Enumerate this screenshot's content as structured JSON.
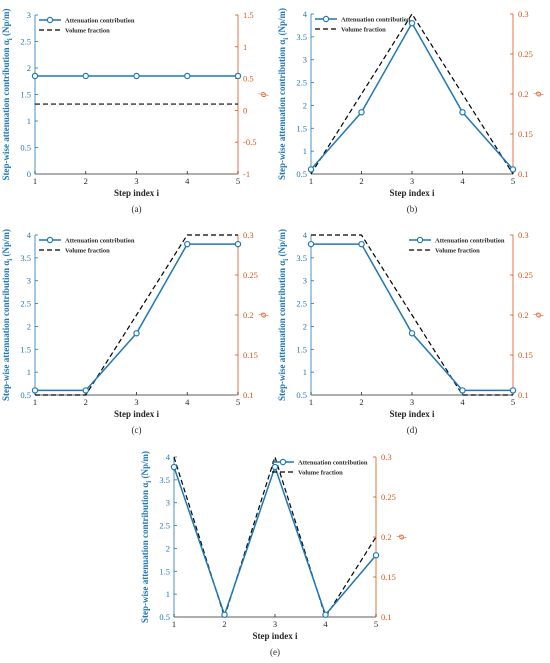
{
  "colors": {
    "attenuation": "#1f77b4",
    "volume": "#000000",
    "right_axis": "#d95319",
    "left_axis": "#1f77b4"
  },
  "chart_data": [
    {
      "type": "line",
      "panel_label": "(a)",
      "x": [
        1,
        2,
        3,
        4,
        5
      ],
      "xlabel": "Step index i",
      "ylabel": "Step-wise attenuation contribution α",
      "ylabel_sub": "i",
      "ylabel_unit": " (Np/m)",
      "y2label": "ϕ",
      "ylim": [
        0,
        3
      ],
      "yticks": [
        0,
        0.5,
        1,
        1.5,
        2,
        2.5,
        3
      ],
      "y2lim": [
        -1,
        1.5
      ],
      "y2ticks": [
        -1,
        -0.5,
        0,
        0.5,
        1,
        1.5
      ],
      "legend_position": "top-left",
      "series": [
        {
          "name": "Attenuation contribution",
          "axis": "left",
          "values": [
            1.85,
            1.85,
            1.85,
            1.85,
            1.85
          ]
        },
        {
          "name": "Volume fraction",
          "axis": "right",
          "values": [
            0.1,
            0.1,
            0.1,
            0.1,
            0.1
          ]
        }
      ]
    },
    {
      "type": "line",
      "panel_label": "(b)",
      "x": [
        1,
        2,
        3,
        4,
        5
      ],
      "xlabel": "Step index i",
      "ylabel": "Step-wise attenuation contribution α",
      "ylabel_sub": "i",
      "ylabel_unit": " (Np/m)",
      "y2label": "ϕ",
      "ylim": [
        0.5,
        4
      ],
      "yticks": [
        0.5,
        1,
        1.5,
        2,
        2.5,
        3,
        3.5,
        4
      ],
      "y2lim": [
        0.1,
        0.3
      ],
      "y2ticks": [
        0.1,
        0.15,
        0.2,
        0.25,
        0.3
      ],
      "legend_position": "top-left",
      "series": [
        {
          "name": "Attenuation contribution",
          "axis": "left",
          "values": [
            0.6,
            1.85,
            3.8,
            1.85,
            0.6
          ]
        },
        {
          "name": "Volume fraction",
          "axis": "right",
          "values": [
            0.1,
            0.2,
            0.3,
            0.2,
            0.1
          ]
        }
      ]
    },
    {
      "type": "line",
      "panel_label": "(c)",
      "x": [
        1,
        2,
        3,
        4,
        5
      ],
      "xlabel": "Step index i",
      "ylabel": "Step-wise attenuation contribution α",
      "ylabel_sub": "i",
      "ylabel_unit": " (Np/m)",
      "y2label": "ϕ",
      "ylim": [
        0.5,
        4
      ],
      "yticks": [
        0.5,
        1,
        1.5,
        2,
        2.5,
        3,
        3.5,
        4
      ],
      "y2lim": [
        0.1,
        0.3
      ],
      "y2ticks": [
        0.1,
        0.15,
        0.2,
        0.25,
        0.3
      ],
      "legend_position": "top-left",
      "series": [
        {
          "name": "Attenuation contribution",
          "axis": "left",
          "values": [
            0.6,
            0.6,
            1.85,
            3.8,
            3.8
          ]
        },
        {
          "name": "Volume fraction",
          "axis": "right",
          "values": [
            0.1,
            0.1,
            0.2,
            0.3,
            0.3
          ]
        }
      ]
    },
    {
      "type": "line",
      "panel_label": "(d)",
      "x": [
        1,
        2,
        3,
        4,
        5
      ],
      "xlabel": "Step index i",
      "ylabel": "Step-wise attenuation contribution α",
      "ylabel_sub": "i",
      "ylabel_unit": " (Np/m)",
      "y2label": "ϕ",
      "ylim": [
        0.5,
        4
      ],
      "yticks": [
        0.5,
        1,
        1.5,
        2,
        2.5,
        3,
        3.5,
        4
      ],
      "y2lim": [
        0.1,
        0.3
      ],
      "y2ticks": [
        0.1,
        0.15,
        0.2,
        0.25,
        0.3
      ],
      "legend_position": "top-right",
      "series": [
        {
          "name": "Attenuation contribution",
          "axis": "left",
          "values": [
            3.8,
            3.8,
            1.85,
            0.6,
            0.6
          ]
        },
        {
          "name": "Volume fraction",
          "axis": "right",
          "values": [
            0.3,
            0.3,
            0.2,
            0.1,
            0.1
          ]
        }
      ]
    },
    {
      "type": "line",
      "panel_label": "(e)",
      "x": [
        1,
        2,
        3,
        4,
        5
      ],
      "xlabel": "Step index i",
      "ylabel": "Step-wise attenuation contribution α",
      "ylabel_sub": "i",
      "ylabel_unit": " (Np/m)",
      "y2label": "ϕ",
      "ylim": [
        0.5,
        4
      ],
      "yticks": [
        0.5,
        1,
        1.5,
        2,
        2.5,
        3,
        3.5,
        4
      ],
      "y2lim": [
        0.1,
        0.3
      ],
      "y2ticks": [
        0.1,
        0.15,
        0.2,
        0.25,
        0.3
      ],
      "legend_position": "top-right",
      "series": [
        {
          "name": "Attenuation contribution",
          "axis": "left",
          "values": [
            3.78,
            0.55,
            3.78,
            0.55,
            1.85
          ]
        },
        {
          "name": "Volume fraction",
          "axis": "right",
          "values": [
            0.3,
            0.1,
            0.3,
            0.1,
            0.2
          ]
        }
      ]
    }
  ]
}
